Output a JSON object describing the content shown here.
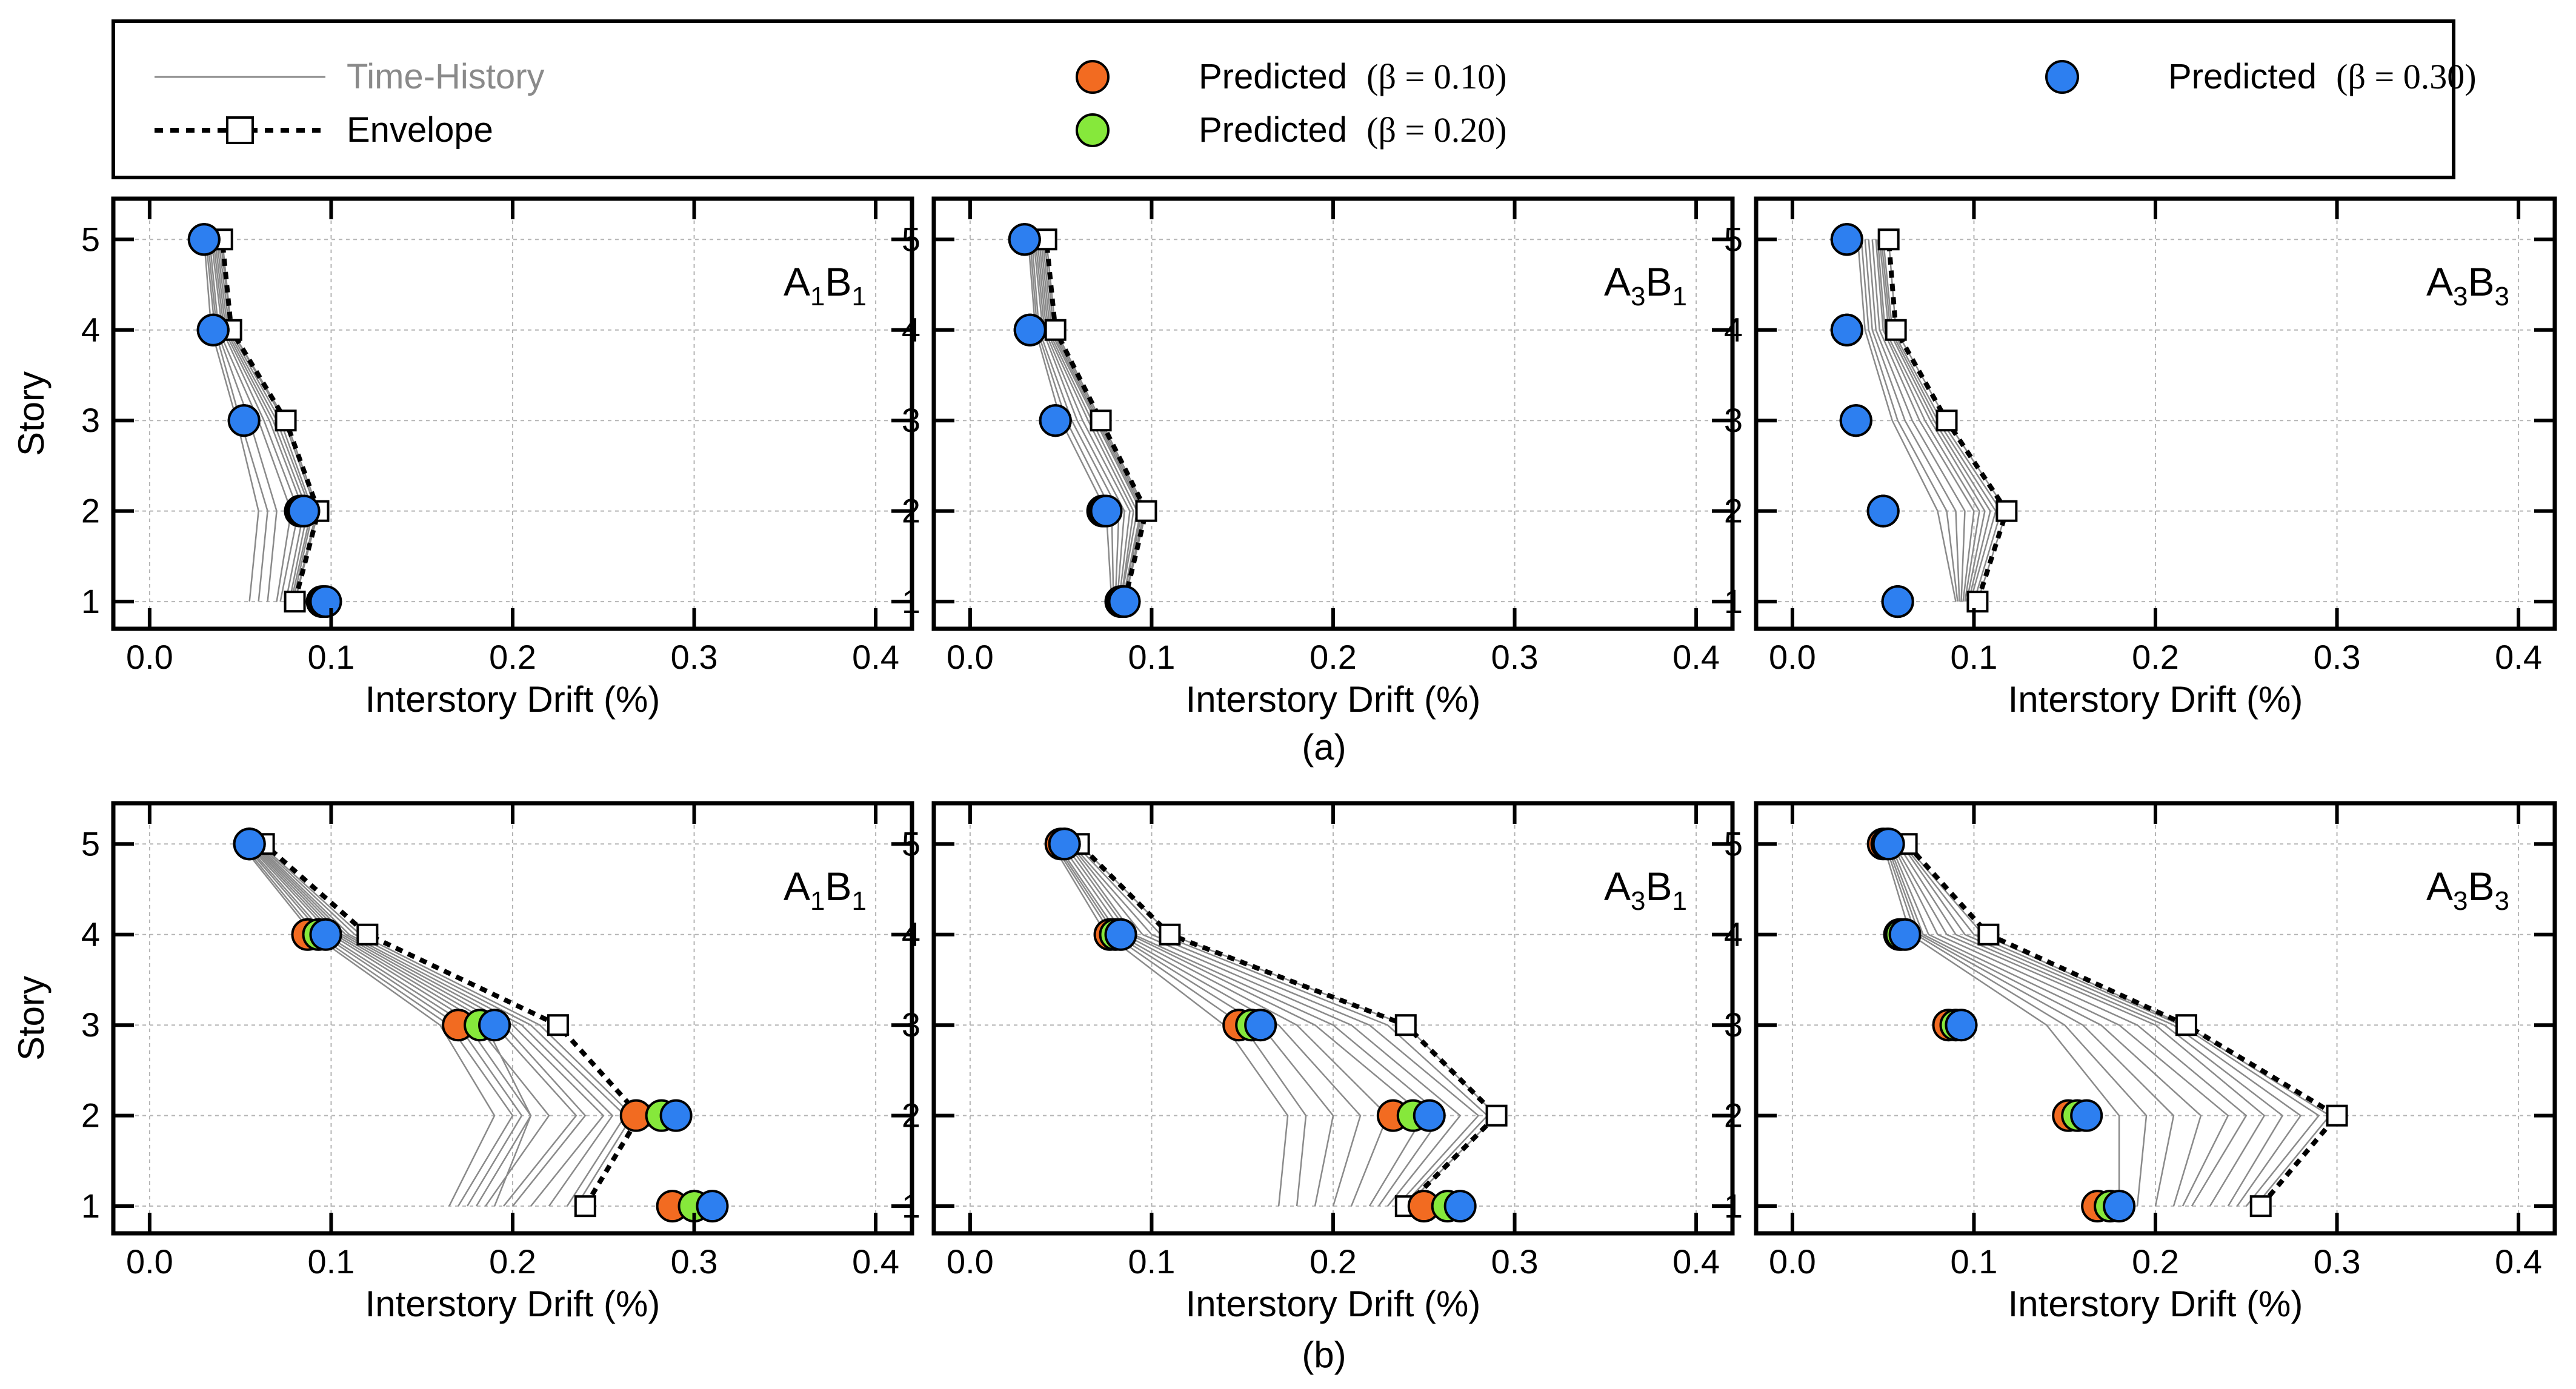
{
  "legend": {
    "time_history_label": "Time-History",
    "envelope_label": "Envelope",
    "predicted_010": "Predicted",
    "predicted_010_param": "(β = 0.10)",
    "predicted_020": "Predicted",
    "predicted_020_param": "(β = 0.20)",
    "predicted_030": "Predicted",
    "predicted_030_param": "(β = 0.30)"
  },
  "colors": {
    "beta_010": "#f26b21",
    "beta_020": "#86e83b",
    "beta_030": "#2d7ff0",
    "time_history": "#8a8a8a",
    "envelope": "#000000"
  },
  "row_labels": [
    "(a)",
    "(b)"
  ],
  "chart_data": [
    {
      "type": "scatter",
      "row": 0,
      "col": 0,
      "panel_label": {
        "main": "A",
        "sub1": "1",
        "mid": "B",
        "sub2": "1"
      },
      "xlabel": "Interstory Drift (%)",
      "ylabel": "Story",
      "xlim": [
        -0.02,
        0.42
      ],
      "ylim": [
        0.7,
        5.45
      ],
      "xticks": [
        "0.0",
        "0.1",
        "0.2",
        "0.3",
        "0.4"
      ],
      "yticks": [
        "1",
        "2",
        "3",
        "4",
        "5"
      ],
      "envelope": [
        0.08,
        0.093,
        0.075,
        0.045,
        0.04
      ],
      "predicted_030": [
        0.097,
        0.085,
        0.052,
        0.035,
        0.03
      ],
      "predicted_020": [
        0.096,
        0.084,
        0.052,
        0.035,
        0.03
      ],
      "predicted_010": [
        0.095,
        0.083,
        0.052,
        0.035,
        0.03
      ],
      "time_history": [
        [
          0.055,
          0.06,
          0.048,
          0.034,
          0.03
        ],
        [
          0.06,
          0.065,
          0.05,
          0.036,
          0.031
        ],
        [
          0.065,
          0.07,
          0.055,
          0.037,
          0.032
        ],
        [
          0.07,
          0.078,
          0.06,
          0.038,
          0.033
        ],
        [
          0.072,
          0.082,
          0.063,
          0.04,
          0.034
        ],
        [
          0.075,
          0.085,
          0.066,
          0.041,
          0.035
        ],
        [
          0.077,
          0.087,
          0.068,
          0.042,
          0.036
        ],
        [
          0.078,
          0.089,
          0.07,
          0.043,
          0.037
        ],
        [
          0.079,
          0.09,
          0.072,
          0.044,
          0.038
        ],
        [
          0.08,
          0.092,
          0.074,
          0.045,
          0.039
        ],
        [
          0.08,
          0.093,
          0.075,
          0.045,
          0.04
        ]
      ]
    },
    {
      "type": "scatter",
      "row": 0,
      "col": 1,
      "panel_label": {
        "main": "A",
        "sub1": "3",
        "mid": "B",
        "sub2": "1"
      },
      "xlabel": "Interstory Drift (%)",
      "ylabel": "",
      "xlim": [
        -0.02,
        0.42
      ],
      "ylim": [
        0.7,
        5.45
      ],
      "xticks": [
        "0.0",
        "0.1",
        "0.2",
        "0.3",
        "0.4"
      ],
      "yticks": [
        "1",
        "2",
        "3",
        "4",
        "5"
      ],
      "envelope": [
        0.085,
        0.097,
        0.072,
        0.047,
        0.042
      ],
      "predicted_030": [
        0.085,
        0.075,
        0.047,
        0.033,
        0.03
      ],
      "predicted_020": [
        0.084,
        0.074,
        0.047,
        0.033,
        0.03
      ],
      "predicted_010": [
        0.083,
        0.073,
        0.047,
        0.033,
        0.03
      ],
      "time_history": [
        [
          0.078,
          0.075,
          0.05,
          0.036,
          0.032
        ],
        [
          0.079,
          0.078,
          0.053,
          0.037,
          0.033
        ],
        [
          0.08,
          0.082,
          0.056,
          0.038,
          0.034
        ],
        [
          0.081,
          0.085,
          0.059,
          0.04,
          0.035
        ],
        [
          0.082,
          0.088,
          0.062,
          0.041,
          0.036
        ],
        [
          0.083,
          0.09,
          0.065,
          0.042,
          0.037
        ],
        [
          0.083,
          0.092,
          0.067,
          0.043,
          0.038
        ],
        [
          0.084,
          0.094,
          0.069,
          0.044,
          0.039
        ],
        [
          0.084,
          0.095,
          0.07,
          0.045,
          0.04
        ],
        [
          0.085,
          0.096,
          0.071,
          0.046,
          0.041
        ],
        [
          0.085,
          0.097,
          0.072,
          0.047,
          0.042
        ]
      ]
    },
    {
      "type": "scatter",
      "row": 0,
      "col": 2,
      "panel_label": {
        "main": "A",
        "sub1": "3",
        "mid": "B",
        "sub2": "3"
      },
      "xlabel": "Interstory Drift (%)",
      "ylabel": "",
      "xlim": [
        -0.02,
        0.42
      ],
      "ylim": [
        0.7,
        5.45
      ],
      "xticks": [
        "0.0",
        "0.1",
        "0.2",
        "0.3",
        "0.4"
      ],
      "yticks": [
        "1",
        "2",
        "3",
        "4",
        "5"
      ],
      "envelope": [
        0.102,
        0.118,
        0.085,
        0.057,
        0.053
      ],
      "predicted_030": [
        0.058,
        0.05,
        0.035,
        0.03,
        0.03
      ],
      "predicted_020": [
        0.058,
        0.05,
        0.035,
        0.03,
        0.03
      ],
      "predicted_010": [
        0.058,
        0.05,
        0.035,
        0.03,
        0.03
      ],
      "time_history": [
        [
          0.09,
          0.08,
          0.055,
          0.04,
          0.036
        ],
        [
          0.091,
          0.085,
          0.058,
          0.042,
          0.038
        ],
        [
          0.092,
          0.09,
          0.062,
          0.044,
          0.04
        ],
        [
          0.093,
          0.095,
          0.066,
          0.046,
          0.042
        ],
        [
          0.094,
          0.1,
          0.07,
          0.048,
          0.044
        ],
        [
          0.095,
          0.103,
          0.073,
          0.05,
          0.046
        ],
        [
          0.096,
          0.106,
          0.076,
          0.051,
          0.047
        ],
        [
          0.097,
          0.109,
          0.078,
          0.053,
          0.048
        ],
        [
          0.098,
          0.112,
          0.08,
          0.054,
          0.049
        ],
        [
          0.1,
          0.115,
          0.082,
          0.055,
          0.05
        ],
        [
          0.102,
          0.118,
          0.085,
          0.057,
          0.053
        ]
      ]
    },
    {
      "type": "scatter",
      "row": 1,
      "col": 0,
      "panel_label": {
        "main": "A",
        "sub1": "1",
        "mid": "B",
        "sub2": "1"
      },
      "xlabel": "Interstory Drift (%)",
      "ylabel": "Story",
      "xlim": [
        -0.02,
        0.42
      ],
      "ylim": [
        0.7,
        5.45
      ],
      "xticks": [
        "0.0",
        "0.1",
        "0.2",
        "0.3",
        "0.4"
      ],
      "yticks": [
        "1",
        "2",
        "3",
        "4",
        "5"
      ],
      "envelope": [
        0.24,
        0.27,
        0.225,
        0.12,
        0.063
      ],
      "predicted_030": [
        0.31,
        0.29,
        0.19,
        0.097,
        0.055
      ],
      "predicted_020": [
        0.3,
        0.282,
        0.182,
        0.093,
        0.055
      ],
      "predicted_010": [
        0.288,
        0.268,
        0.17,
        0.087,
        0.055
      ],
      "time_history": [
        [
          0.165,
          0.19,
          0.16,
          0.09,
          0.05
        ],
        [
          0.17,
          0.2,
          0.165,
          0.092,
          0.051
        ],
        [
          0.175,
          0.205,
          0.17,
          0.095,
          0.052
        ],
        [
          0.18,
          0.21,
          0.175,
          0.097,
          0.053
        ],
        [
          0.185,
          0.22,
          0.18,
          0.1,
          0.054
        ],
        [
          0.19,
          0.21,
          0.185,
          0.102,
          0.055
        ],
        [
          0.195,
          0.235,
          0.19,
          0.104,
          0.056
        ],
        [
          0.2,
          0.24,
          0.195,
          0.106,
          0.057
        ],
        [
          0.21,
          0.25,
          0.2,
          0.108,
          0.058
        ],
        [
          0.22,
          0.255,
          0.205,
          0.11,
          0.059
        ],
        [
          0.23,
          0.262,
          0.21,
          0.113,
          0.06
        ],
        [
          0.235,
          0.266,
          0.215,
          0.116,
          0.061
        ]
      ]
    },
    {
      "type": "scatter",
      "row": 1,
      "col": 1,
      "panel_label": {
        "main": "A",
        "sub1": "3",
        "mid": "B",
        "sub2": "1"
      },
      "xlabel": "Interstory Drift (%)",
      "ylabel": "",
      "xlim": [
        -0.02,
        0.42
      ],
      "ylim": [
        0.7,
        5.45
      ],
      "xticks": [
        "0.0",
        "0.1",
        "0.2",
        "0.3",
        "0.4"
      ],
      "yticks": [
        "1",
        "2",
        "3",
        "4",
        "5"
      ],
      "envelope": [
        0.24,
        0.29,
        0.24,
        0.11,
        0.06
      ],
      "predicted_030": [
        0.27,
        0.253,
        0.16,
        0.083,
        0.052
      ],
      "predicted_020": [
        0.263,
        0.244,
        0.155,
        0.08,
        0.052
      ],
      "predicted_010": [
        0.25,
        0.233,
        0.148,
        0.077,
        0.05
      ],
      "time_history": [
        [
          0.17,
          0.175,
          0.14,
          0.075,
          0.045
        ],
        [
          0.18,
          0.185,
          0.15,
          0.078,
          0.046
        ],
        [
          0.19,
          0.2,
          0.16,
          0.08,
          0.047
        ],
        [
          0.2,
          0.215,
          0.17,
          0.082,
          0.048
        ],
        [
          0.21,
          0.23,
          0.18,
          0.085,
          0.05
        ],
        [
          0.22,
          0.25,
          0.19,
          0.088,
          0.052
        ],
        [
          0.225,
          0.26,
          0.2,
          0.09,
          0.054
        ],
        [
          0.23,
          0.27,
          0.21,
          0.095,
          0.055
        ],
        [
          0.235,
          0.28,
          0.22,
          0.1,
          0.056
        ],
        [
          0.238,
          0.285,
          0.23,
          0.105,
          0.058
        ],
        [
          0.24,
          0.29,
          0.24,
          0.11,
          0.06
        ]
      ]
    },
    {
      "type": "scatter",
      "row": 1,
      "col": 2,
      "panel_label": {
        "main": "A",
        "sub1": "3",
        "mid": "B",
        "sub2": "3"
      },
      "xlabel": "Interstory Drift (%)",
      "ylabel": "",
      "xlim": [
        -0.02,
        0.42
      ],
      "ylim": [
        0.7,
        5.45
      ],
      "xticks": [
        "0.0",
        "0.1",
        "0.2",
        "0.3",
        "0.4"
      ],
      "yticks": [
        "1",
        "2",
        "3",
        "4",
        "5"
      ],
      "envelope": [
        0.258,
        0.3,
        0.217,
        0.108,
        0.063
      ],
      "predicted_030": [
        0.18,
        0.162,
        0.093,
        0.062,
        0.053
      ],
      "predicted_020": [
        0.175,
        0.157,
        0.09,
        0.06,
        0.052
      ],
      "predicted_010": [
        0.168,
        0.152,
        0.086,
        0.059,
        0.05
      ],
      "time_history": [
        [
          0.18,
          0.18,
          0.14,
          0.065,
          0.05
        ],
        [
          0.19,
          0.195,
          0.15,
          0.068,
          0.051
        ],
        [
          0.2,
          0.21,
          0.16,
          0.07,
          0.052
        ],
        [
          0.21,
          0.225,
          0.17,
          0.072,
          0.053
        ],
        [
          0.215,
          0.24,
          0.18,
          0.075,
          0.054
        ],
        [
          0.22,
          0.25,
          0.19,
          0.08,
          0.055
        ],
        [
          0.23,
          0.26,
          0.2,
          0.085,
          0.056
        ],
        [
          0.24,
          0.27,
          0.205,
          0.09,
          0.058
        ],
        [
          0.245,
          0.28,
          0.21,
          0.095,
          0.06
        ],
        [
          0.25,
          0.29,
          0.214,
          0.1,
          0.061
        ],
        [
          0.255,
          0.296,
          0.216,
          0.105,
          0.062
        ]
      ]
    }
  ]
}
